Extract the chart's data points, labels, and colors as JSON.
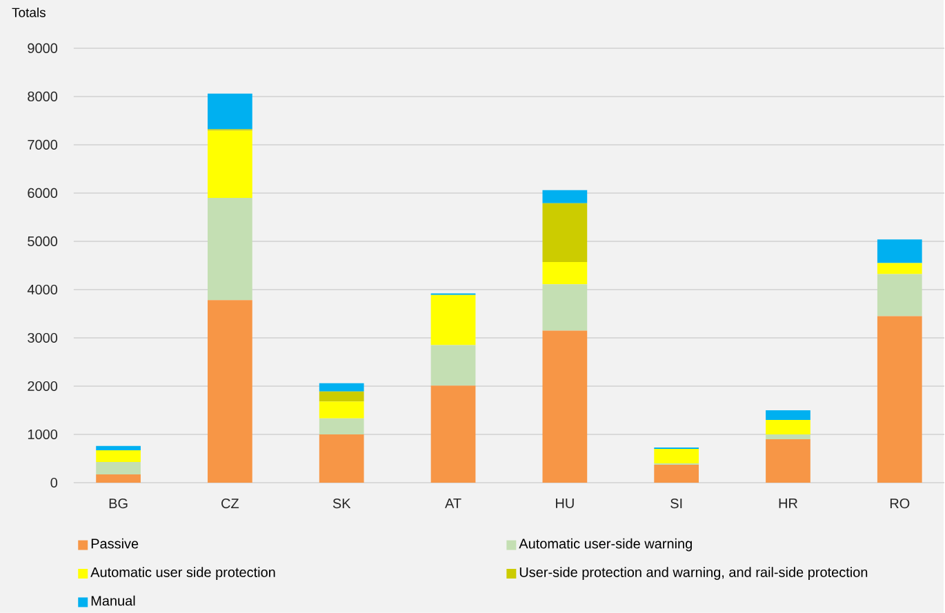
{
  "chart_data": {
    "type": "bar",
    "stacked": true,
    "ylabel": "Totals",
    "categories": [
      "BG",
      "CZ",
      "SK",
      "AT",
      "HU",
      "SI",
      "HR",
      "RO"
    ],
    "series": [
      {
        "name": "Passive",
        "color": "#f79646",
        "values": [
          170,
          3780,
          1000,
          2010,
          3150,
          370,
          900,
          3450
        ]
      },
      {
        "name": "Automatic user-side warning",
        "color": "#c4dfb3",
        "values": [
          260,
          2120,
          330,
          840,
          960,
          30,
          100,
          870
        ]
      },
      {
        "name": "Automatic user side protection",
        "color": "#ffff00",
        "values": [
          240,
          1390,
          350,
          1040,
          460,
          300,
          300,
          230
        ]
      },
      {
        "name": "User-side protection and warning, and rail-side protection",
        "color": "#cccc00",
        "values": [
          0,
          30,
          210,
          0,
          1220,
          0,
          0,
          0
        ]
      },
      {
        "name": "Manual",
        "color": "#00b0f0",
        "values": [
          90,
          740,
          170,
          30,
          270,
          30,
          200,
          490
        ]
      }
    ],
    "ylim": [
      0,
      9000
    ],
    "yticks": [
      0,
      1000,
      2000,
      3000,
      4000,
      5000,
      6000,
      7000,
      8000,
      9000
    ],
    "grid": "y",
    "legend": "bottom"
  }
}
